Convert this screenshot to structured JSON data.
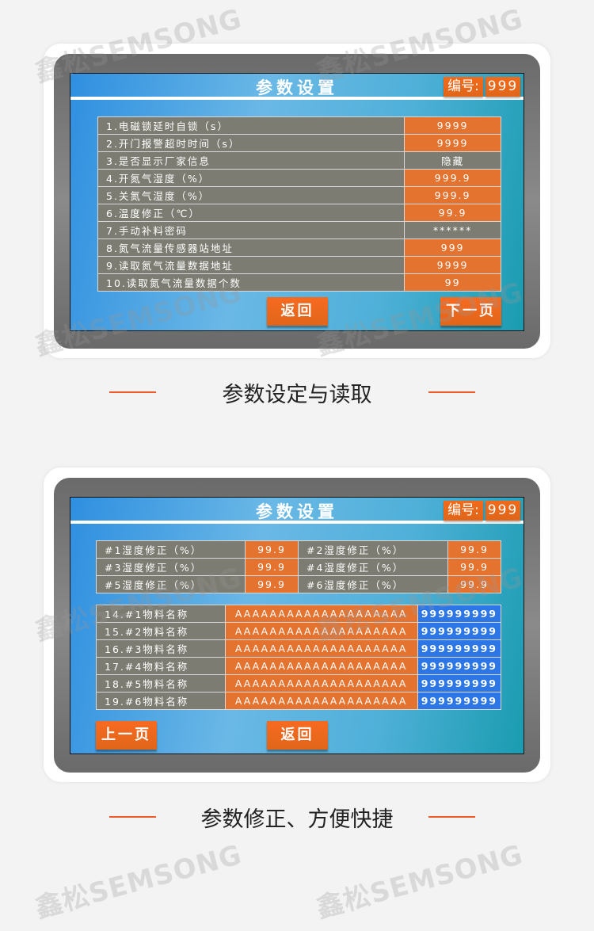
{
  "watermark": "鑫松SEMSONG",
  "colors": {
    "accent": "#e57330",
    "label_bg": "#7c7c72",
    "blue_cell": "#2c76e6",
    "divider": "#f05a28"
  },
  "screen1": {
    "title": "参数设置",
    "id_label": "编号:",
    "id_value": "999",
    "rows": [
      {
        "label": "1.电磁锁延时自锁（s）",
        "value": "9999",
        "type": "o"
      },
      {
        "label": "2.开门报警超时时间（s）",
        "value": "9999",
        "type": "o"
      },
      {
        "label": "3.是否显示厂家信息",
        "value": "隐藏",
        "type": "g"
      },
      {
        "label": "4.开氮气湿度（%）",
        "value": "999.9",
        "type": "o"
      },
      {
        "label": "5.关氮气湿度（%）",
        "value": "999.9",
        "type": "o"
      },
      {
        "label": "6.温度修正（℃）",
        "value": "99.9",
        "type": "o"
      },
      {
        "label": "7.手动补料密码",
        "value": "******",
        "type": "g"
      },
      {
        "label": "8.氮气流量传感器站地址",
        "value": "999",
        "type": "o"
      },
      {
        "label": "9.读取氮气流量数据地址",
        "value": "9999",
        "type": "o"
      },
      {
        "label": "10.读取氮气流量数据个数",
        "value": "99",
        "type": "o"
      }
    ],
    "back_label": "返回",
    "next_label": "下一页"
  },
  "caption1": "参数设定与读取",
  "screen2": {
    "title": "参数设置",
    "id_label": "编号:",
    "id_value": "999",
    "humidity": [
      [
        "#1湿度修正（%）",
        "99.9",
        "#2湿度修正（%）",
        "99.9"
      ],
      [
        "#3湿度修正（%）",
        "99.9",
        "#4湿度修正（%）",
        "99.9"
      ],
      [
        "#5湿度修正（%）",
        "99.9",
        "#6湿度修正（%）",
        "99.9"
      ]
    ],
    "materials": [
      [
        "14.#1物料名称",
        "AAAAAAAAAAAAAAAAAAAA",
        "999999999"
      ],
      [
        "15.#2物料名称",
        "AAAAAAAAAAAAAAAAAAAA",
        "999999999"
      ],
      [
        "16.#3物料名称",
        "AAAAAAAAAAAAAAAAAAAA",
        "999999999"
      ],
      [
        "17.#4物料名称",
        "AAAAAAAAAAAAAAAAAAAA",
        "999999999"
      ],
      [
        "18.#5物料名称",
        "AAAAAAAAAAAAAAAAAAAA",
        "999999999"
      ],
      [
        "19.#6物料名称",
        "AAAAAAAAAAAAAAAAAAAA",
        "999999999"
      ]
    ],
    "prev_label": "上一页",
    "back_label": "返回"
  },
  "caption2": "参数修正、方便快捷"
}
